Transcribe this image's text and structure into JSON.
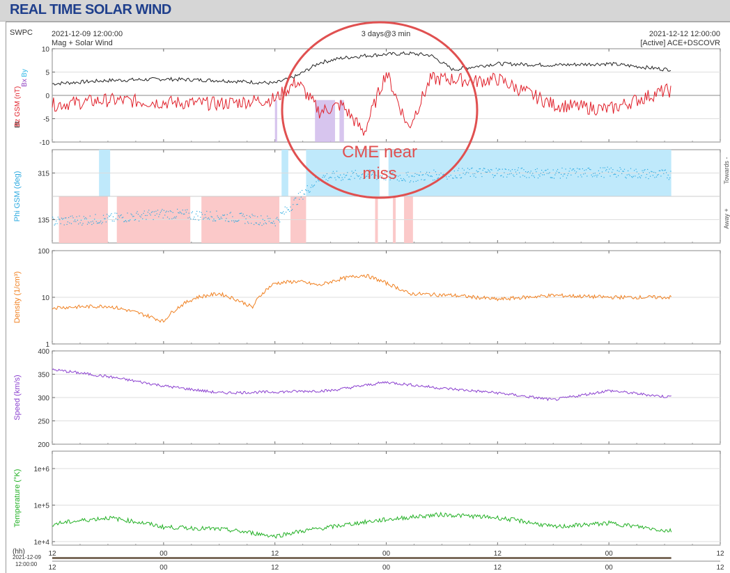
{
  "page": {
    "title": "REAL TIME SOLAR WIND"
  },
  "header": {
    "org": "SWPC",
    "start_time": "2021-12-09 12:00:00",
    "subtitle": "Mag + Solar Wind",
    "span": "3 days@3 min",
    "end_time": "2021-12-12 12:00:00",
    "source": "[Active] ACE+DSCOVR"
  },
  "annotation": {
    "line1": "CME near",
    "line2": "miss",
    "color": "#e05050"
  },
  "xaxis": {
    "tick_labels": [
      "12",
      "00",
      "12",
      "00",
      "12",
      "00",
      "12"
    ],
    "hh_label": "(hh)",
    "start_date_label": "2021-12-09",
    "start_hour_label": "12:00:00"
  },
  "colors": {
    "bt": "#222222",
    "bz": "#e0202a",
    "by": "#2fb7e6",
    "bx": "#9040c0",
    "phi": "#2aa9e0",
    "phi_toward_band": "#bfe9fb",
    "phi_away_band": "#fbc9c9",
    "density": "#f08020",
    "speed": "#8a3fcf",
    "temperature": "#22b024",
    "grid": "#dddddd"
  },
  "chart_data": [
    {
      "type": "line",
      "panel": "Magnetic field",
      "ylabel_parts": [
        "Bt",
        "Bz GSM (nT)",
        "Bx",
        "By"
      ],
      "ylim": [
        -10,
        10
      ],
      "yticks": [
        10,
        5,
        0,
        -5,
        -10
      ],
      "x_days": [
        0,
        0.25,
        0.5,
        0.75,
        1.0,
        1.1,
        1.2,
        1.3,
        1.4,
        1.5,
        1.6,
        1.7,
        1.8,
        1.9,
        2.0,
        2.25,
        2.5,
        2.75
      ],
      "series": [
        {
          "name": "Bt",
          "values": [
            2.5,
            3.2,
            3.5,
            3.2,
            2.6,
            4.2,
            7.0,
            8.0,
            8.5,
            8.8,
            9.0,
            8.6,
            5.5,
            6.2,
            6.8,
            6.5,
            6.8,
            5.6
          ]
        },
        {
          "name": "Bz",
          "values": [
            -2.0,
            -1.0,
            -1.5,
            -1.8,
            -0.8,
            3.0,
            -3.5,
            -2.0,
            -8.0,
            5.0,
            -7.0,
            3.5,
            3.5,
            3.0,
            3.5,
            -2.0,
            -3.0,
            1.0
          ]
        }
      ]
    },
    {
      "type": "scatter",
      "panel": "Phi GSM",
      "ylabel": "Phi GSM (deg)",
      "ylim": [
        45,
        405
      ],
      "yticks": [
        315,
        135
      ],
      "right_labels": [
        "Towards -",
        "Away +"
      ],
      "x_days": [
        0,
        0.25,
        0.5,
        0.75,
        1.0,
        1.2,
        1.4,
        1.6,
        1.8,
        2.0,
        2.25,
        2.5,
        2.75
      ],
      "values": [
        130,
        140,
        160,
        150,
        130,
        300,
        310,
        300,
        315,
        320,
        315,
        320,
        310
      ]
    },
    {
      "type": "line",
      "panel": "Density",
      "ylabel": "Density (1/cm³)",
      "yscale": "log",
      "ylim": [
        1,
        100
      ],
      "yticks": [
        100,
        10,
        1
      ],
      "x_days": [
        0,
        0.25,
        0.5,
        0.65,
        0.75,
        0.9,
        1.0,
        1.1,
        1.2,
        1.3,
        1.4,
        1.5,
        1.6,
        1.8,
        2.0,
        2.25,
        2.5,
        2.75
      ],
      "values": [
        6,
        6.5,
        3,
        10,
        12,
        6,
        20,
        22,
        18,
        25,
        30,
        20,
        12,
        11,
        9,
        11,
        10,
        10
      ]
    },
    {
      "type": "line",
      "panel": "Speed",
      "ylabel": "Speed (km/s)",
      "ylim": [
        200,
        400
      ],
      "yticks": [
        400,
        350,
        300,
        250,
        200
      ],
      "x_days": [
        0,
        0.25,
        0.5,
        0.75,
        1.0,
        1.25,
        1.5,
        1.75,
        2.0,
        2.25,
        2.5,
        2.75
      ],
      "values": [
        360,
        345,
        325,
        310,
        312,
        315,
        333,
        320,
        310,
        295,
        315,
        302
      ]
    },
    {
      "type": "line",
      "panel": "Temperature",
      "ylabel": "Temperature (°K)",
      "yscale": "log",
      "ylim": [
        8000,
        3000000
      ],
      "yticks": [
        "1e+6",
        "1e+5",
        "1e+4"
      ],
      "x_days": [
        0,
        0.25,
        0.5,
        0.75,
        1.0,
        1.25,
        1.5,
        1.75,
        2.0,
        2.25,
        2.5,
        2.75
      ],
      "values": [
        30000,
        45000,
        25000,
        22000,
        14000,
        25000,
        40000,
        55000,
        45000,
        25000,
        32000,
        20000
      ]
    }
  ]
}
